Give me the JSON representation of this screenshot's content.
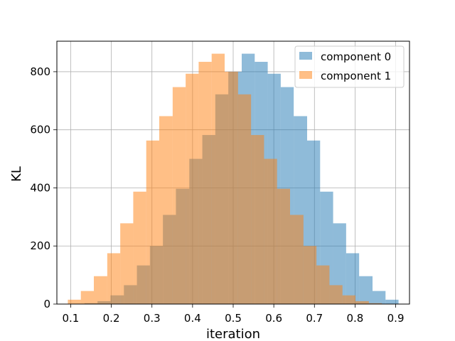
{
  "chart_data": {
    "type": "histogram",
    "title": "",
    "xlabel": "iteration",
    "ylabel": "KL",
    "xlim": [
      0.066,
      0.934
    ],
    "ylim": [
      0,
      905
    ],
    "xticks": [
      0.1,
      0.2,
      0.3,
      0.4,
      0.5,
      0.6,
      0.7,
      0.8,
      0.9
    ],
    "xtick_labels": [
      "0.1",
      "0.2",
      "0.3",
      "0.4",
      "0.5",
      "0.6",
      "0.7",
      "0.8",
      "0.9"
    ],
    "yticks": [
      0,
      200,
      400,
      600,
      800
    ],
    "ytick_labels": [
      "0",
      "200",
      "400",
      "600",
      "800"
    ],
    "grid": true,
    "legend_position": "top-right",
    "series": [
      {
        "name": "component 0",
        "color": "#1f77b4",
        "alpha": 0.5,
        "bin_edges": [
          0.134,
          0.166,
          0.198,
          0.231,
          0.263,
          0.295,
          0.327,
          0.359,
          0.392,
          0.424,
          0.456,
          0.488,
          0.521,
          0.553,
          0.585,
          0.617,
          0.649,
          0.682,
          0.714,
          0.746,
          0.778,
          0.81,
          0.843,
          0.875,
          0.907
        ],
        "counts": [
          3,
          10,
          30,
          65,
          133,
          200,
          307,
          397,
          500,
          582,
          722,
          800,
          862,
          834,
          793,
          747,
          647,
          563,
          387,
          278,
          175,
          96,
          45,
          15
        ]
      },
      {
        "name": "component 1",
        "color": "#ff7f0e",
        "alpha": 0.5,
        "bin_edges": [
          0.093,
          0.125,
          0.157,
          0.19,
          0.222,
          0.254,
          0.286,
          0.318,
          0.351,
          0.383,
          0.415,
          0.447,
          0.479,
          0.512,
          0.544,
          0.576,
          0.608,
          0.64,
          0.673,
          0.705,
          0.737,
          0.769,
          0.801,
          0.834,
          0.866
        ],
        "counts": [
          15,
          45,
          96,
          175,
          278,
          387,
          563,
          647,
          747,
          793,
          834,
          862,
          800,
          722,
          582,
          500,
          397,
          307,
          200,
          133,
          65,
          30,
          10,
          3
        ]
      }
    ]
  }
}
